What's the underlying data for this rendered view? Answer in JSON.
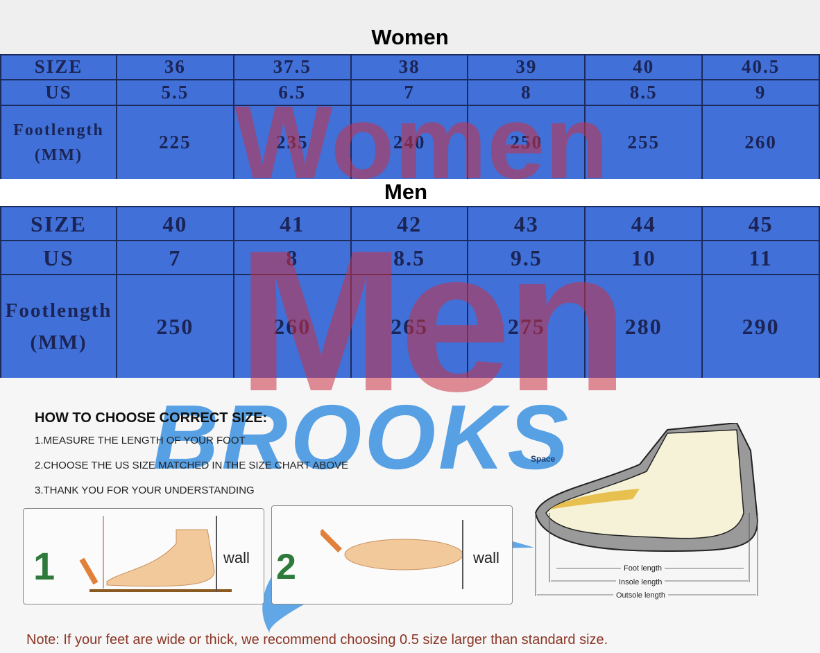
{
  "women": {
    "title": "Women",
    "watermark": "Women",
    "rows": [
      {
        "label": "SIZE",
        "values": [
          "36",
          "37.5",
          "38",
          "39",
          "40",
          "40.5"
        ]
      },
      {
        "label": "US",
        "values": [
          "5.5",
          "6.5",
          "7",
          "8",
          "8.5",
          "9"
        ]
      },
      {
        "label": "Footlength (MM)",
        "values": [
          "225",
          "235",
          "240",
          "250",
          "255",
          "260"
        ]
      }
    ]
  },
  "men": {
    "title": "Men",
    "watermark": "Men",
    "rows": [
      {
        "label": "SIZE",
        "values": [
          "40",
          "41",
          "42",
          "43",
          "44",
          "45"
        ]
      },
      {
        "label": "US",
        "values": [
          "7",
          "8",
          "8.5",
          "9.5",
          "10",
          "11"
        ]
      },
      {
        "label": "Footlength (MM)",
        "values": [
          "250",
          "260",
          "265",
          "275",
          "280",
          "290"
        ]
      }
    ]
  },
  "brand_watermark": "BROOKS",
  "guide": {
    "heading": "HOW TO CHOOSE CORRECT SIZE:",
    "steps": [
      "1.MEASURE THE LENGTH OF YOUR FOOT",
      "2.CHOOSE THE US SIZE MATCHED IN THE SIZE CHART ABOVE",
      "3.THANK YOU FOR YOUR UNDERSTANDING"
    ],
    "panel1": {
      "number": "1",
      "wall": "wall"
    },
    "panel2": {
      "number": "2",
      "wall": "wall"
    },
    "diagram": {
      "space": "Space",
      "foot_length": "Foot length",
      "insole_length": "Insole length",
      "outsole_length": "Outsole length"
    }
  },
  "note": "Note: If your feet are wide or thick, we recommend choosing 0.5 size larger than standard size.",
  "colors": {
    "table_bg": "#4070d8",
    "text": "#1b2455",
    "note": "#8a3424",
    "watermark_red": "#c0354a",
    "watermark_blue": "#2f8be0"
  }
}
